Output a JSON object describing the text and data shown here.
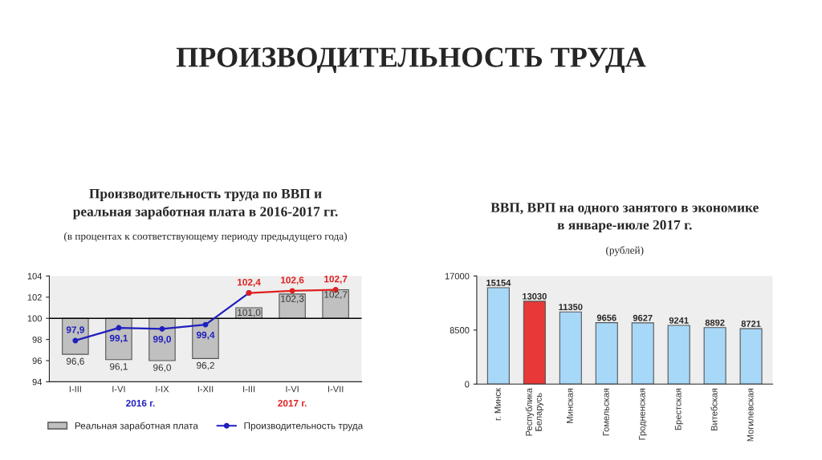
{
  "chart_data": [
    {
      "type": "bar",
      "title": "Производительность труда по ВВП и\nреальная заработная плата в 2016-2017 гг.",
      "subtitle": "(в процентах к соответствующему периоду предыдущего года)",
      "annotations": [
        "ПРОИЗВОДИТЕЛЬНОСТЬ ТРУДА",
        "2016 г.",
        "2017 г."
      ],
      "categories": [
        "I-III",
        "I-VI",
        "I-IX",
        "I-XII",
        "I-III",
        "I-VI",
        "I-VII"
      ],
      "series": [
        {
          "type": "bar",
          "name": "Реальная заработная плата",
          "color": "#c0c0c0",
          "base": [
            100,
            100,
            100,
            100,
            100,
            100,
            100
          ],
          "values": [
            -3.4,
            -3.9,
            -4.0,
            -3.8,
            1.0,
            2.3,
            2.7
          ],
          "value_labels": [
            "96,6",
            "96,1",
            "96,0",
            "96,2",
            "101,0",
            "102,3",
            "102,7"
          ]
        },
        {
          "type": "line",
          "name": "Производительность труда",
          "color": "#1f1fbf",
          "marker": "circle",
          "values": [
            97.9,
            99.1,
            99.0,
            99.4,
            102.4,
            null,
            null
          ],
          "value_labels": [
            "97,9",
            "99,1",
            "99,0",
            "99,4",
            null,
            null,
            null
          ]
        },
        {
          "type": "line",
          "color": "#e02020",
          "marker": "circle",
          "values": [
            null,
            null,
            null,
            null,
            102.4,
            102.6,
            102.7
          ],
          "value_labels": [
            null,
            null,
            null,
            null,
            "102,4",
            "102,6",
            "102,7"
          ]
        }
      ],
      "ylim": [
        94,
        104
      ],
      "yticks": [
        94,
        96,
        98,
        100,
        102,
        104
      ],
      "ref_lines": [
        {
          "axis": "y",
          "value": 100,
          "color": "#000000"
        }
      ],
      "legend": "bottom"
    },
    {
      "type": "bar",
      "title": "ВВП, ВРП на одного занятого в экономике\nв январе-июле 2017 г.",
      "subtitle": "(рублей)",
      "categories": [
        "г. Минск",
        "Республика\nБеларусь",
        "Минская",
        "Гомельская",
        "Гродненская",
        "Брестская",
        "Витебская",
        "Могилевская"
      ],
      "values": [
        15154,
        13030,
        11350,
        9656,
        9627,
        9241,
        8892,
        8721
      ],
      "colors": [
        "#a8d8f8",
        "#e83838",
        "#a8d8f8",
        "#a8d8f8",
        "#a8d8f8",
        "#a8d8f8",
        "#a8d8f8",
        "#a8d8f8"
      ],
      "ylim": [
        0,
        17000
      ],
      "yticks": [
        0,
        8500,
        17000
      ],
      "data_labels": true
    }
  ]
}
